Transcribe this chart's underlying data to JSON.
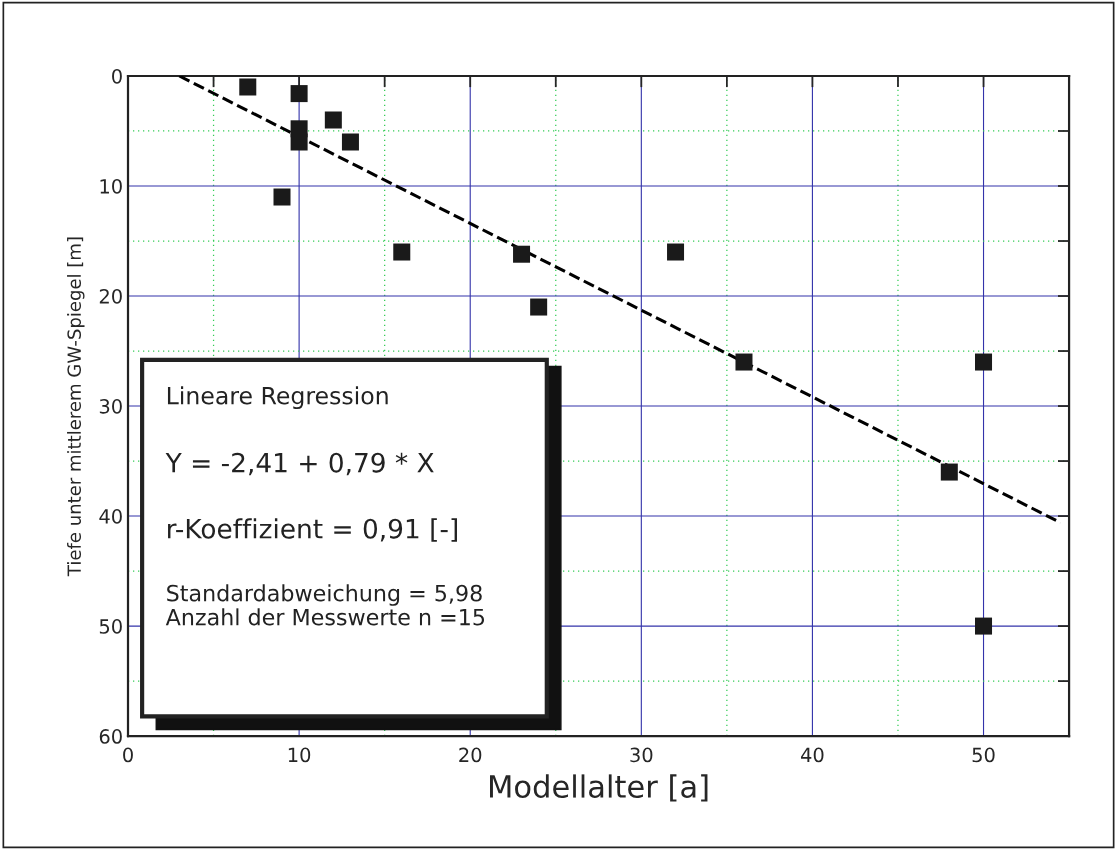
{
  "chart_data": {
    "type": "scatter",
    "xlabel": "Modellalter [a]",
    "ylabel": "Tiefe unter mittlerem GW-Spiegel [m]",
    "xlim": [
      0,
      55
    ],
    "xticks": [
      0,
      {
        "value": 5,
        "label": null
      },
      10,
      {
        "value": 15,
        "label": null
      },
      20,
      {
        "value": 25,
        "label": null
      },
      30,
      {
        "value": 35,
        "label": null
      },
      40,
      {
        "value": 45,
        "label": null
      },
      50
    ],
    "ylim": [
      60,
      0
    ],
    "yticks": [
      0,
      {
        "value": 5,
        "label": null
      },
      10,
      {
        "value": 15,
        "label": null
      },
      20,
      {
        "value": 25,
        "label": null
      },
      30,
      {
        "value": 35,
        "label": null
      },
      40,
      {
        "value": 45,
        "label": null
      },
      50,
      {
        "value": 55,
        "label": null
      },
      60
    ],
    "grid": true,
    "series": [
      {
        "color": "#1a1a1a",
        "marker": "square",
        "x": [
          7,
          10,
          10,
          10,
          12,
          13,
          9,
          16,
          23,
          24,
          32,
          36,
          50,
          48,
          50
        ],
        "values": [
          1,
          1.6,
          4.8,
          6,
          4,
          6,
          11,
          16,
          16.2,
          21,
          16,
          26,
          26,
          36,
          50
        ]
      },
      {
        "type": "line",
        "color": "#000000",
        "line_style": "dashed",
        "x": [
          3,
          54.5
        ],
        "values": [
          0,
          40.6
        ]
      }
    ],
    "annotations": [
      "Lineare Regression",
      "Y = -2,41 + 0,79 * X",
      "r-Koeffizient = 0,91 [-]",
      "Standardabweichung = 5,98\nAnzahl der Messwerte n =15"
    ]
  }
}
